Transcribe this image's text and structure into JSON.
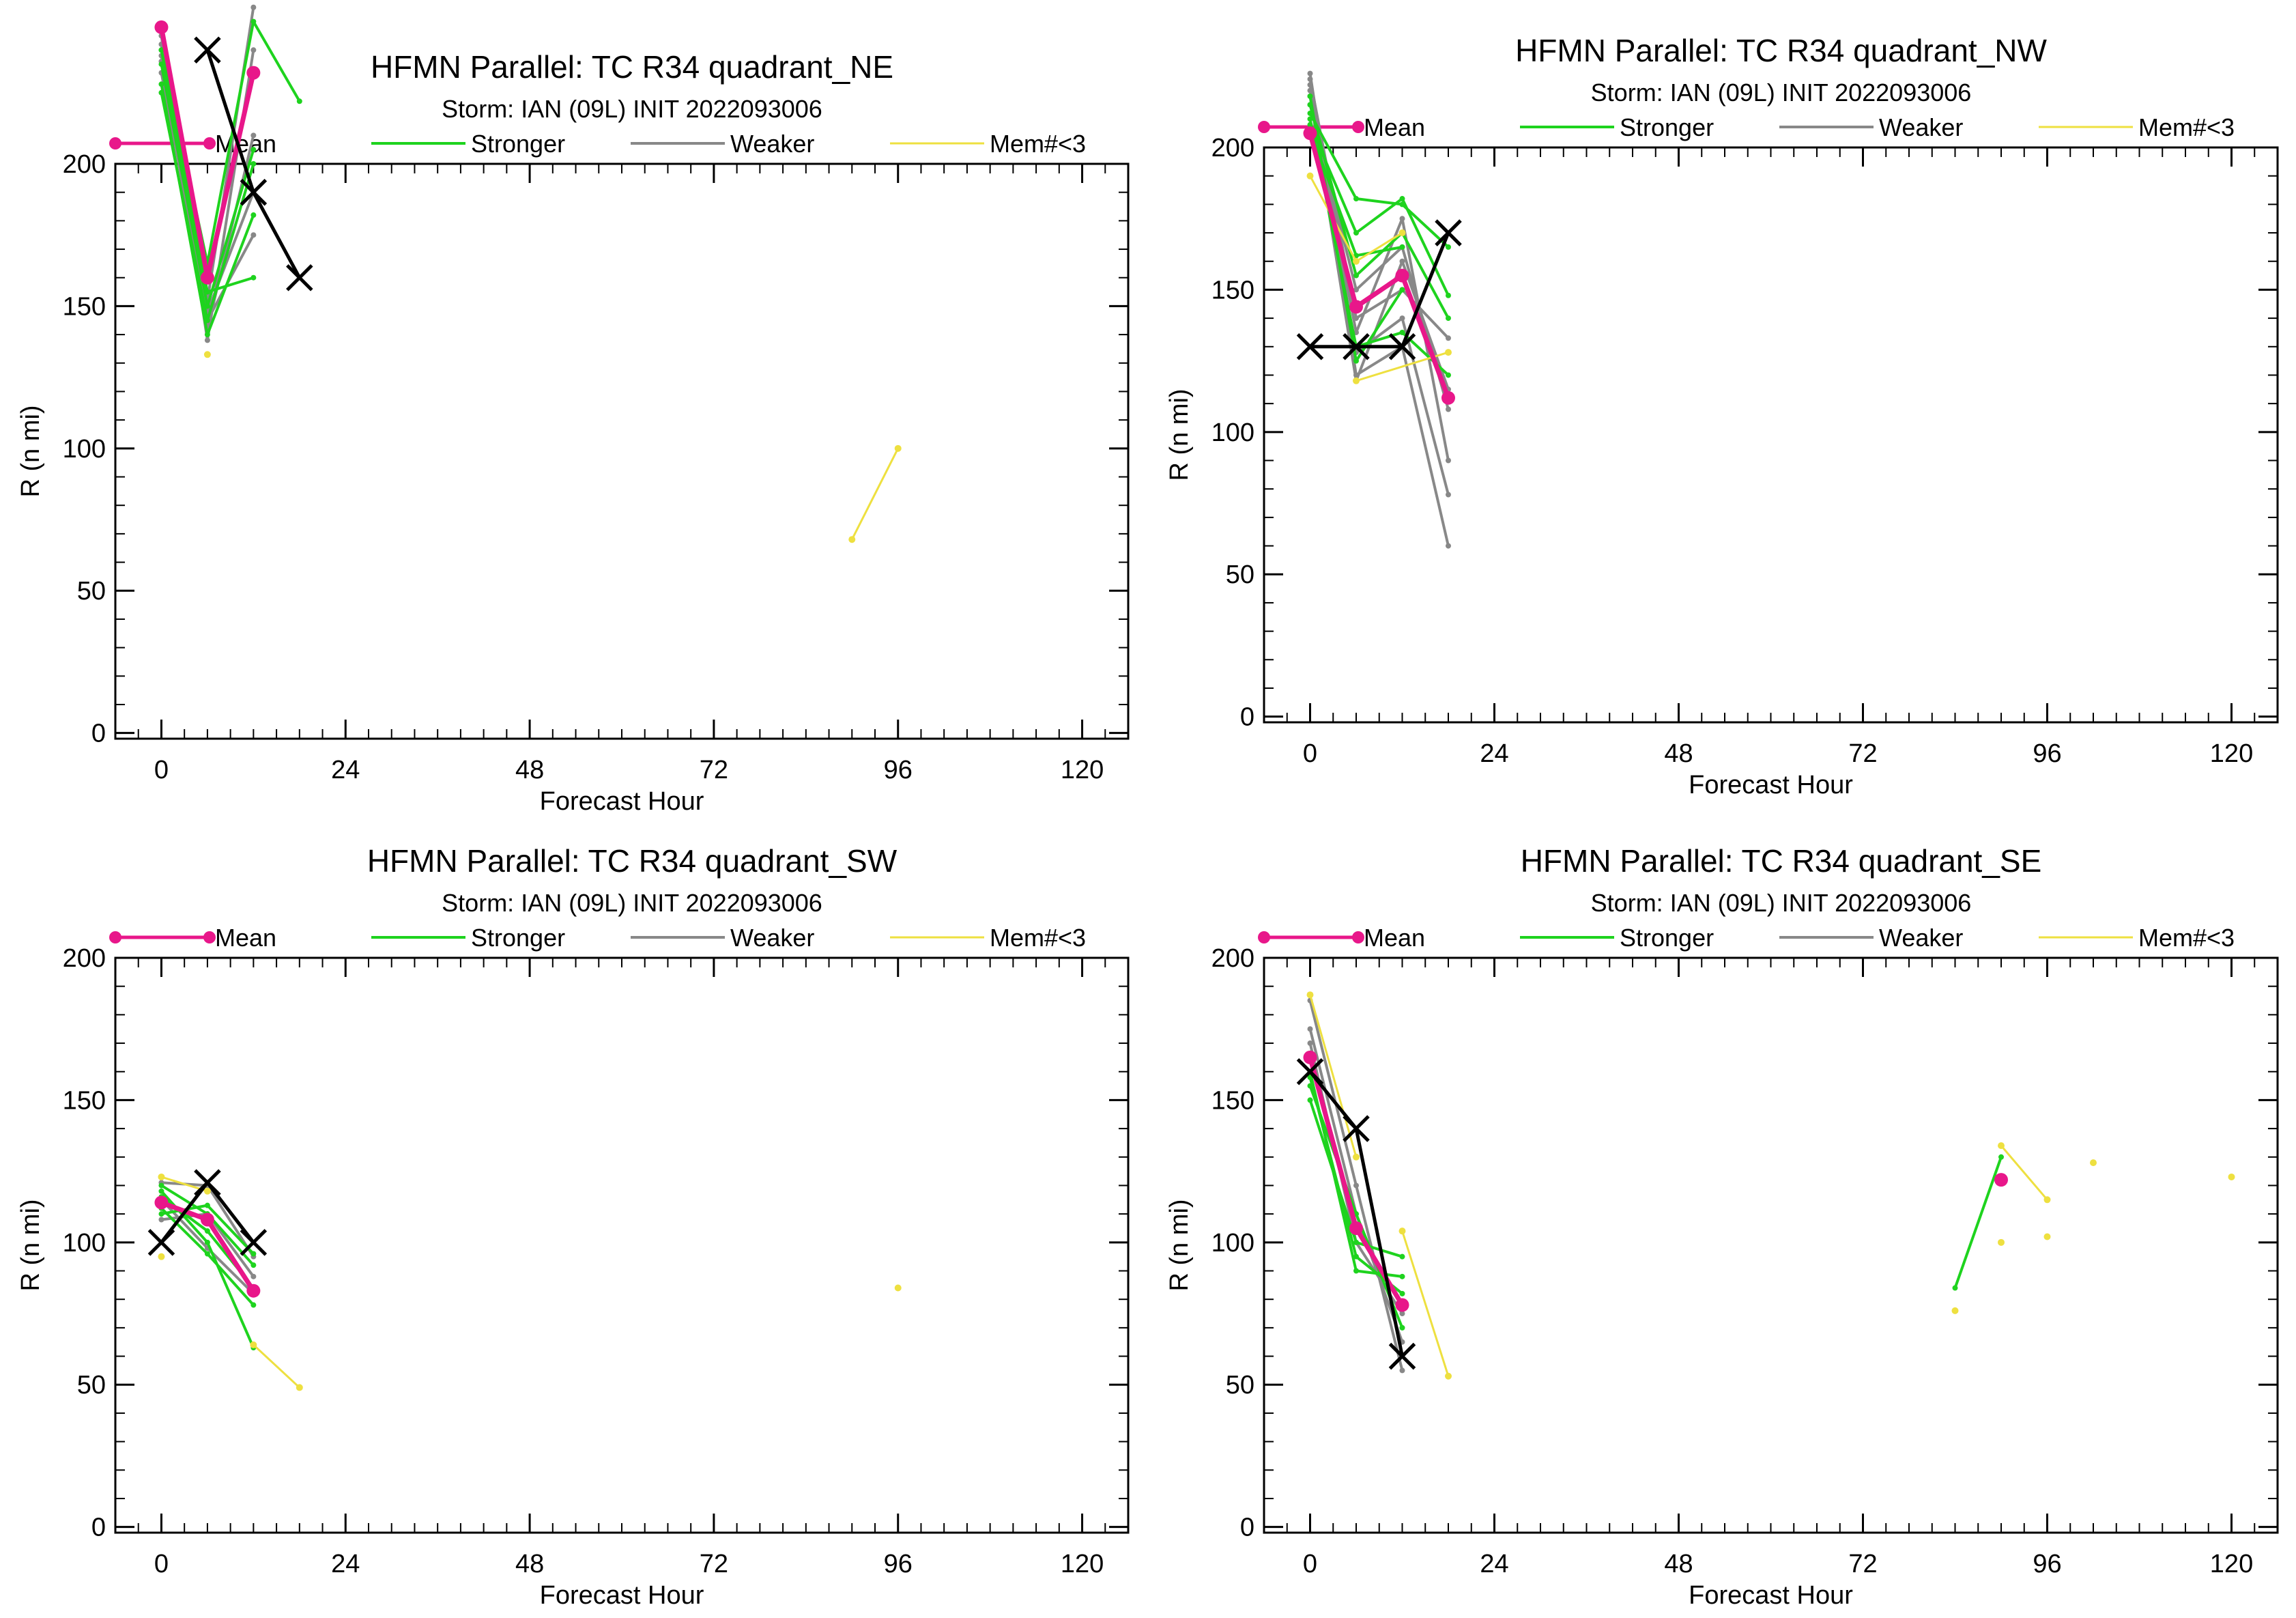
{
  "colors": {
    "mean": "#e8178a",
    "stronger": "#1ed31e",
    "weaker": "#888888",
    "small": "#eee040",
    "best_track": "#000000",
    "axis": "#000000"
  },
  "legend": {
    "mean": "Mean",
    "stronger": "Stronger",
    "weaker": "Weaker",
    "small": "Mem#<3"
  },
  "chart_data": [
    {
      "type": "line",
      "title": "HFMN Parallel: TC  R34 quadrant_NE",
      "subtitle": "Storm: IAN (09L) INIT 2022093006",
      "xlabel": "Forecast Hour",
      "ylabel": "R (n mi)",
      "xlim": [
        -6,
        126
      ],
      "ylim": [
        -2,
        200
      ],
      "xticks": [
        0,
        24,
        48,
        72,
        96,
        120
      ],
      "yticks": [
        0,
        50,
        100,
        150,
        200
      ],
      "mean": {
        "x": [
          0,
          6,
          12
        ],
        "y": [
          248,
          160,
          232
        ]
      },
      "best_track": {
        "x": [
          6,
          12,
          18
        ],
        "y": [
          240,
          190,
          160
        ]
      },
      "stronger": [
        {
          "x": [
            0,
            6,
            12
          ],
          "y": [
            235,
            150,
            205
          ]
        },
        {
          "x": [
            0,
            6,
            12
          ],
          "y": [
            228,
            140,
            182
          ]
        },
        {
          "x": [
            0,
            6,
            12
          ],
          "y": [
            240,
            155,
            160
          ]
        },
        {
          "x": [
            0,
            6,
            12,
            18
          ],
          "y": [
            240,
            165,
            250,
            222
          ]
        },
        {
          "x": [
            0,
            6,
            12
          ],
          "y": [
            225,
            145,
            200
          ]
        }
      ],
      "weaker": [
        {
          "x": [
            0,
            6,
            12
          ],
          "y": [
            245,
            138,
            240
          ]
        },
        {
          "x": [
            0,
            6,
            12
          ],
          "y": [
            238,
            145,
            175
          ]
        },
        {
          "x": [
            0,
            6,
            12
          ],
          "y": [
            232,
            148,
            190
          ]
        },
        {
          "x": [
            0,
            6,
            12
          ],
          "y": [
            242,
            152,
            255
          ]
        },
        {
          "x": [
            0,
            6,
            12
          ],
          "y": [
            236,
            142,
            210
          ]
        }
      ],
      "small": [
        {
          "x": [
            90,
            96
          ],
          "y": [
            68,
            100
          ]
        },
        {
          "x": [
            6
          ],
          "y": [
            133
          ]
        }
      ]
    },
    {
      "type": "line",
      "title": "HFMN Parallel: TC  R34 quadrant_NW",
      "subtitle": "Storm: IAN (09L) INIT 2022093006",
      "xlabel": "Forecast Hour",
      "ylabel": "R (n mi)",
      "xlim": [
        -6,
        126
      ],
      "ylim": [
        -2,
        200
      ],
      "xticks": [
        0,
        24,
        48,
        72,
        96,
        120
      ],
      "yticks": [
        0,
        50,
        100,
        150,
        200
      ],
      "mean": {
        "x": [
          0,
          6,
          12,
          18
        ],
        "y": [
          205,
          144,
          155,
          112
        ]
      },
      "best_track": {
        "x": [
          0,
          6,
          12,
          18
        ],
        "y": [
          130,
          130,
          130,
          170
        ]
      },
      "stronger": [
        {
          "x": [
            0,
            6,
            12,
            18
          ],
          "y": [
            212,
            182,
            180,
            165
          ]
        },
        {
          "x": [
            0,
            6,
            12,
            18
          ],
          "y": [
            208,
            170,
            182,
            148
          ]
        },
        {
          "x": [
            0,
            6,
            12,
            18
          ],
          "y": [
            215,
            155,
            170,
            140
          ]
        },
        {
          "x": [
            0,
            6,
            12,
            18
          ],
          "y": [
            210,
            130,
            135,
            120
          ]
        },
        {
          "x": [
            0,
            6,
            12
          ],
          "y": [
            218,
            125,
            150
          ]
        },
        {
          "x": [
            0,
            6,
            12
          ],
          "y": [
            206,
            162,
            165
          ]
        }
      ],
      "weaker": [
        {
          "x": [
            0,
            6,
            12,
            18
          ],
          "y": [
            226,
            120,
            130,
            60
          ]
        },
        {
          "x": [
            0,
            6,
            12,
            18
          ],
          "y": [
            222,
            128,
            140,
            78
          ]
        },
        {
          "x": [
            0,
            6,
            12,
            18
          ],
          "y": [
            220,
            135,
            175,
            90
          ]
        },
        {
          "x": [
            0,
            6,
            12,
            18
          ],
          "y": [
            215,
            150,
            165,
            108
          ]
        },
        {
          "x": [
            0,
            6,
            12,
            18
          ],
          "y": [
            218,
            118,
            160,
            115
          ]
        },
        {
          "x": [
            0,
            6,
            12,
            18
          ],
          "y": [
            224,
            140,
            150,
            133
          ]
        }
      ],
      "small": [
        {
          "x": [
            0,
            6,
            12
          ],
          "y": [
            190,
            160,
            170
          ]
        },
        {
          "x": [
            6,
            18
          ],
          "y": [
            118,
            128
          ]
        }
      ]
    },
    {
      "type": "line",
      "title": "HFMN Parallel: TC  R34 quadrant_SW",
      "subtitle": "Storm: IAN (09L) INIT 2022093006",
      "xlabel": "Forecast Hour",
      "ylabel": "R (n mi)",
      "xlim": [
        -6,
        126
      ],
      "ylim": [
        -2,
        200
      ],
      "xticks": [
        0,
        24,
        48,
        72,
        96,
        120
      ],
      "yticks": [
        0,
        50,
        100,
        150,
        200
      ],
      "mean": {
        "x": [
          0,
          6,
          12
        ],
        "y": [
          114,
          108,
          83
        ]
      },
      "best_track": {
        "x": [
          0,
          6,
          12
        ],
        "y": [
          100,
          121,
          100
        ]
      },
      "stronger": [
        {
          "x": [
            0,
            6,
            12
          ],
          "y": [
            118,
            100,
            63
          ]
        },
        {
          "x": [
            0,
            6,
            12
          ],
          "y": [
            112,
            96,
            78
          ]
        },
        {
          "x": [
            0,
            6,
            12
          ],
          "y": [
            116,
            104,
            84
          ]
        },
        {
          "x": [
            0,
            6,
            12
          ],
          "y": [
            120,
            110,
            92
          ]
        },
        {
          "x": [
            0,
            6,
            12
          ],
          "y": [
            110,
            113,
            96
          ]
        }
      ],
      "weaker": [
        {
          "x": [
            0,
            6,
            12
          ],
          "y": [
            121,
            120,
            95
          ]
        },
        {
          "x": [
            0,
            6,
            12
          ],
          "y": [
            115,
            98,
            82
          ]
        },
        {
          "x": [
            0,
            6,
            12
          ],
          "y": [
            108,
            110,
            88
          ]
        }
      ],
      "small": [
        {
          "x": [
            0,
            6
          ],
          "y": [
            123,
            118
          ]
        },
        {
          "x": [
            0
          ],
          "y": [
            95
          ]
        },
        {
          "x": [
            12,
            18
          ],
          "y": [
            64,
            49
          ]
        },
        {
          "x": [
            96
          ],
          "y": [
            84
          ]
        }
      ]
    },
    {
      "type": "line",
      "title": "HFMN Parallel: TC  R34 quadrant_SE",
      "subtitle": "Storm: IAN (09L) INIT 2022093006",
      "xlabel": "Forecast Hour",
      "ylabel": "R (n mi)",
      "xlim": [
        -6,
        126
      ],
      "ylim": [
        -2,
        200
      ],
      "xticks": [
        0,
        24,
        48,
        72,
        96,
        120
      ],
      "yticks": [
        0,
        50,
        100,
        150,
        200
      ],
      "mean": {
        "x": [
          0,
          6,
          12
        ],
        "y": [
          165,
          105,
          78
        ]
      },
      "mean_points": {
        "x": [
          90
        ],
        "y": [
          122
        ]
      },
      "best_track": {
        "x": [
          0,
          6,
          12
        ],
        "y": [
          160,
          140,
          60
        ]
      },
      "stronger": [
        {
          "x": [
            0,
            6,
            12
          ],
          "y": [
            160,
            90,
            88
          ]
        },
        {
          "x": [
            0,
            6,
            12
          ],
          "y": [
            155,
            110,
            70
          ]
        },
        {
          "x": [
            0,
            6,
            12
          ],
          "y": [
            150,
            100,
            95
          ]
        },
        {
          "x": [
            0,
            6,
            12
          ],
          "y": [
            158,
            95,
            82
          ]
        },
        {
          "x": [
            84,
            90
          ],
          "y": [
            84,
            130
          ]
        }
      ],
      "weaker": [
        {
          "x": [
            0,
            6,
            12
          ],
          "y": [
            185,
            120,
            55
          ]
        },
        {
          "x": [
            0,
            6,
            12
          ],
          "y": [
            175,
            110,
            65
          ]
        },
        {
          "x": [
            0,
            6,
            12
          ],
          "y": [
            170,
            100,
            75
          ]
        }
      ],
      "small": [
        {
          "x": [
            0,
            6
          ],
          "y": [
            187,
            130
          ]
        },
        {
          "x": [
            12,
            18
          ],
          "y": [
            104,
            53
          ]
        },
        {
          "x": [
            90,
            96
          ],
          "y": [
            134,
            115
          ]
        },
        {
          "x": [
            84
          ],
          "y": [
            76
          ]
        },
        {
          "x": [
            90
          ],
          "y": [
            100
          ]
        },
        {
          "x": [
            96
          ],
          "y": [
            102
          ]
        },
        {
          "x": [
            102
          ],
          "y": [
            128
          ]
        },
        {
          "x": [
            120
          ],
          "y": [
            123
          ]
        }
      ]
    }
  ]
}
